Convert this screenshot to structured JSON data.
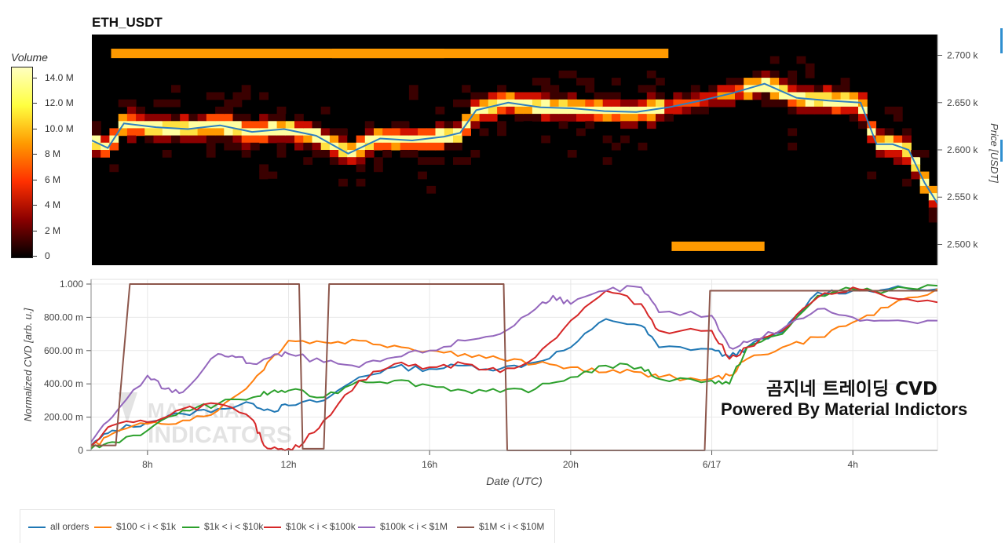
{
  "title": "ETH_USDT",
  "colorbar": {
    "label": "Volume",
    "ticks": [
      "14.0 M",
      "12.0 M",
      "10.0 M",
      "8 M",
      "6 M",
      "4 M",
      "2 M",
      "0"
    ]
  },
  "watermark": {
    "line1": "곰지네 트레이딩 CVD",
    "line2": "Powered By Material Indictors",
    "logo_text": "MATERIAL INDICATORS"
  },
  "chart_data": [
    {
      "type": "heatmap",
      "title": "ETH_USDT",
      "ylabel": "Price [USDT]",
      "y_ticks": [
        "2.500 k",
        "2.550 k",
        "2.600 k",
        "2.650 k",
        "2.700 k"
      ],
      "ylim": [
        2478,
        2722
      ],
      "colorscale": [
        "#000000",
        "#8b0000",
        "#ff3000",
        "#ff9a00",
        "#ffff40",
        "#ffffc0"
      ],
      "zlim": [
        0,
        15000000
      ],
      "price_line": {
        "name": "price",
        "color": "#2f7fc0",
        "x": [
          0,
          0.5,
          1,
          2,
          3,
          4,
          5,
          6,
          7,
          8,
          9,
          10,
          11,
          11.5,
          12,
          13,
          14,
          15,
          16,
          17,
          18,
          19,
          20,
          21,
          22,
          23,
          24,
          24.5,
          25,
          25.5,
          26,
          26.5,
          27,
          27.5,
          28,
          28.5,
          29,
          29.5,
          30,
          31,
          32,
          33
        ],
        "y": [
          2610,
          2602,
          2628,
          2624,
          2622,
          2626,
          2619,
          2622,
          2615,
          2596,
          2612,
          2610,
          2614,
          2618,
          2642,
          2650,
          2645,
          2644,
          2641,
          2640,
          2645,
          2652,
          2660,
          2670,
          2655,
          2652,
          2650,
          2606,
          2606,
          2600,
          2565,
          2538,
          2578,
          2575,
          2580,
          2578,
          2570,
          2610,
          2605,
          2592,
          2586,
          2582
        ]
      },
      "x_range": [
        6.4,
        32.8
      ],
      "price_spans": [
        {
          "price_lo": 2697,
          "price_hi": 2707,
          "x0": 7.0,
          "x1": 17.4,
          "level": 0.72
        },
        {
          "price_lo": 2697,
          "price_hi": 2707,
          "x0": 13.9,
          "x1": 24.4,
          "level": 0.72
        },
        {
          "price_lo": 2493,
          "price_hi": 2503,
          "x0": 24.5,
          "x1": 27.4,
          "level": 0.72
        }
      ]
    },
    {
      "type": "line",
      "xlabel": "Date (UTC)",
      "ylabel": "Normalized CVD [arb. u.]",
      "ylim": [
        0,
        1
      ],
      "x_ticks": [
        {
          "x": 8,
          "label": "8h"
        },
        {
          "x": 12,
          "label": "12h"
        },
        {
          "x": 16,
          "label": "16h"
        },
        {
          "x": 20,
          "label": "20h"
        },
        {
          "x": 24,
          "label": "6/17"
        },
        {
          "x": 28,
          "label": "4h"
        }
      ],
      "y_ticks": [
        {
          "y": 0,
          "label": "0"
        },
        {
          "y": 0.2,
          "label": "200.00 m"
        },
        {
          "y": 0.4,
          "label": "400.00 m"
        },
        {
          "y": 0.6,
          "label": "600.00 m"
        },
        {
          "y": 0.8,
          "label": "800.00 m"
        },
        {
          "y": 1.0,
          "label": "1.000"
        }
      ],
      "x_range": [
        6.4,
        30.4
      ],
      "series": [
        {
          "name": "all orders",
          "color": "#1f77b4",
          "x": [
            6.4,
            7,
            8,
            9,
            10,
            11,
            11.5,
            12,
            13,
            14,
            15,
            16,
            17,
            18,
            19,
            20,
            21,
            22,
            22.5,
            24,
            24.5,
            25,
            26,
            27,
            28,
            29,
            30.4
          ],
          "y": [
            0.03,
            0.12,
            0.17,
            0.22,
            0.25,
            0.28,
            0.24,
            0.27,
            0.3,
            0.44,
            0.5,
            0.49,
            0.51,
            0.49,
            0.53,
            0.62,
            0.79,
            0.75,
            0.62,
            0.61,
            0.56,
            0.62,
            0.71,
            0.95,
            0.96,
            0.97,
            0.97
          ]
        },
        {
          "name": "$100 < i < $1k",
          "color": "#ff7f0e",
          "x": [
            6.4,
            7,
            8,
            9,
            10,
            11,
            11.5,
            12,
            13,
            14,
            15,
            16,
            17,
            18,
            19,
            20,
            21,
            22,
            22.5,
            24,
            24.5,
            25,
            26,
            27,
            28,
            29,
            30.4
          ],
          "y": [
            0.02,
            0.1,
            0.16,
            0.18,
            0.24,
            0.42,
            0.55,
            0.66,
            0.65,
            0.66,
            0.63,
            0.6,
            0.58,
            0.55,
            0.52,
            0.5,
            0.47,
            0.47,
            0.44,
            0.43,
            0.45,
            0.55,
            0.62,
            0.68,
            0.77,
            0.86,
            0.97
          ]
        },
        {
          "name": "$1k < i < $10k",
          "color": "#2ca02c",
          "x": [
            6.4,
            7,
            8,
            9,
            10,
            11,
            11.5,
            12,
            13,
            14,
            15,
            16,
            17,
            18,
            19,
            20,
            21,
            22,
            22.5,
            24,
            24.5,
            25,
            26,
            27,
            28,
            29,
            30.4
          ],
          "y": [
            0.01,
            0.05,
            0.12,
            0.24,
            0.28,
            0.32,
            0.35,
            0.36,
            0.32,
            0.42,
            0.42,
            0.39,
            0.36,
            0.35,
            0.37,
            0.44,
            0.51,
            0.5,
            0.43,
            0.42,
            0.4,
            0.62,
            0.7,
            0.93,
            0.97,
            0.96,
            0.99
          ]
        },
        {
          "name": "$10k < i < $100k",
          "color": "#d62728",
          "x": [
            6.4,
            7,
            8,
            9,
            10,
            11,
            11.3,
            11.8,
            12.3,
            13,
            14,
            15,
            16,
            17,
            18,
            19,
            20,
            21,
            22,
            22.5,
            24,
            24.5,
            25,
            26,
            27,
            28,
            29,
            30.4
          ],
          "y": [
            0.03,
            0.15,
            0.17,
            0.25,
            0.28,
            0.18,
            0.03,
            0.01,
            0.02,
            0.18,
            0.42,
            0.52,
            0.5,
            0.52,
            0.47,
            0.56,
            0.78,
            0.96,
            0.88,
            0.72,
            0.72,
            0.55,
            0.62,
            0.72,
            0.92,
            0.98,
            0.92,
            0.89
          ]
        },
        {
          "name": "$100k < i < $1M",
          "color": "#9467bd",
          "x": [
            6.4,
            7,
            8,
            8.5,
            9,
            10,
            10.5,
            11,
            11.5,
            12,
            13,
            14,
            15,
            16,
            17,
            18,
            19,
            19.5,
            20,
            21,
            22,
            22.5,
            24,
            24.5,
            25,
            26,
            27,
            28,
            29,
            30.4
          ],
          "y": [
            0.05,
            0.2,
            0.45,
            0.37,
            0.35,
            0.58,
            0.56,
            0.52,
            0.56,
            0.58,
            0.53,
            0.5,
            0.56,
            0.6,
            0.66,
            0.7,
            0.85,
            0.93,
            0.88,
            0.96,
            0.98,
            0.83,
            0.81,
            0.62,
            0.65,
            0.73,
            0.85,
            0.8,
            0.78,
            0.78
          ]
        },
        {
          "name": "$1M < i < $10M",
          "color": "#8c564b",
          "x": [
            6.4,
            7.1,
            7.5,
            12.3,
            12.4,
            13.0,
            13.15,
            18.1,
            18.2,
            23.8,
            23.95,
            30.4
          ],
          "y": [
            0.03,
            0.03,
            1.0,
            1.0,
            0.01,
            0.01,
            1.0,
            1.0,
            0.0,
            0.0,
            0.96,
            0.96
          ]
        }
      ]
    }
  ]
}
